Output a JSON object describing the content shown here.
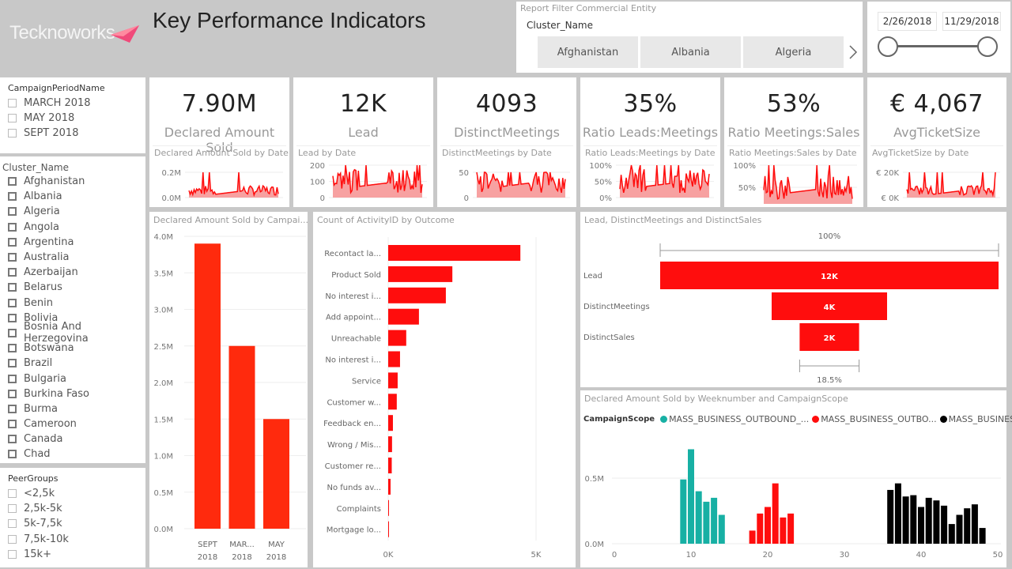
{
  "header": {
    "logo_text": "Tecknoworks",
    "title": "Key Performance Indicators"
  },
  "report_filter": {
    "title": "Report Filter Commercial Entity",
    "field": "Cluster_Name",
    "chips": [
      "Afghanistan",
      "Albania",
      "Algeria"
    ],
    "next_icon": "chevron-right-icon"
  },
  "date_range": {
    "start": "2/26/2018",
    "end": "11/29/2018",
    "start_fraction": 0.0,
    "end_fraction": 1.0
  },
  "slicers": {
    "campaign_period": {
      "title": "CampaignPeriodName",
      "items": [
        "MARCH 2018",
        "MAY 2018",
        "SEPT 2018"
      ]
    },
    "cluster_name": {
      "title": "Cluster_Name",
      "items": [
        "Afghanistan",
        "Albania",
        "Algeria",
        "Angola",
        "Argentina",
        "Australia",
        "Azerbaijan",
        "Belarus",
        "Benin",
        "Bolivia",
        "Bosnia And Herzegovina",
        "Botswana",
        "Brazil",
        "Bulgaria",
        "Burkina Faso",
        "Burma",
        "Cameroon",
        "Canada",
        "Chad"
      ]
    },
    "peer_groups": {
      "title": "PeerGroups",
      "items": [
        "<2,5k",
        "2,5k-5k",
        "5k-7,5k",
        "7,5k-10k",
        "15k+"
      ]
    }
  },
  "kpis": [
    {
      "value": "7.90M",
      "label": "Declared Amount Sold",
      "sub": "Declared Amount Sold by Date",
      "ticks": [
        "0.2M",
        "0.0M"
      ]
    },
    {
      "value": "12K",
      "label": "Lead",
      "sub": "Lead by Date",
      "ticks": [
        "200",
        "100",
        "0"
      ]
    },
    {
      "value": "4093",
      "label": "DistinctMeetings",
      "sub": "DistinctMeetings by Date",
      "ticks": [
        "50",
        "0"
      ]
    },
    {
      "value": "35%",
      "label": "Ratio Leads:Meetings",
      "sub": "Ratio Leads:Meetings by Date",
      "ticks": [
        "100%",
        "50%",
        "0%"
      ]
    },
    {
      "value": "53%",
      "label": "Ratio Meetings:Sales",
      "sub": "Ratio Meetings:Sales by Date",
      "ticks": [
        "100%",
        "50%"
      ]
    },
    {
      "value": "€ 4,067",
      "label": "AvgTicketSize",
      "sub": "AvgTicketSize by Date",
      "ticks": [
        "€ 20K",
        "€ 0K"
      ]
    }
  ],
  "colors": {
    "accent_red": "#ff0d0d",
    "bar_red": "#ff2a0d",
    "teal": "#17b0a4",
    "black": "#000000",
    "spark_fill": "#f7a1a1"
  },
  "chart_data": [
    {
      "id": "campaign_bar",
      "type": "bar",
      "title": "Declared Amount Sold by Campai...",
      "categories": [
        "SEPT 2018",
        "MAR... 2018",
        "MAY 2018"
      ],
      "category_lines": [
        [
          "SEPT",
          "2018"
        ],
        [
          "MAR...",
          "2018"
        ],
        [
          "MAY",
          "2018"
        ]
      ],
      "values": [
        3.9,
        2.5,
        1.5
      ],
      "unit": "M",
      "ylim": [
        0,
        4.0
      ],
      "yticks": [
        "0.0M",
        "0.5M",
        "1.0M",
        "1.5M",
        "2.0M",
        "2.5M",
        "3.0M",
        "3.5M",
        "4.0M"
      ],
      "grid": true
    },
    {
      "id": "outcome_bar",
      "type": "bar",
      "orientation": "horizontal",
      "title": "Count of ActivityID by Outcome",
      "categories": [
        "Recontact la...",
        "Product Sold",
        "No interest i...",
        "Add appoint...",
        "Unreachable",
        "No interest i...",
        "Service",
        "Customer w...",
        "Feedback en...",
        "Wrong / Mis...",
        "Customer re...",
        "No funds av...",
        "Complaints",
        "Mortgage lo..."
      ],
      "values": [
        4470,
        2170,
        1950,
        1040,
        610,
        400,
        320,
        290,
        160,
        130,
        120,
        80,
        20,
        20
      ],
      "xlim": [
        0,
        5000
      ],
      "xticks": [
        "0K",
        "5K"
      ],
      "grid": true
    },
    {
      "id": "funnel",
      "type": "funnel",
      "title": "Lead, DistinctMeetings and DistinctSales",
      "categories": [
        "Lead",
        "DistinctMeetings",
        "DistinctSales"
      ],
      "values": [
        12000,
        4093,
        2220
      ],
      "labels": [
        "12K",
        "4K",
        "2K"
      ],
      "top_percent": "100%",
      "bottom_percent": "18.5%"
    },
    {
      "id": "weekly_bar",
      "type": "bar",
      "title": "Declared Amount Sold by Weeknumber and CampaignScope",
      "legend_title": "CampaignScope",
      "legend_position": "top-left",
      "xlim": [
        0,
        50
      ],
      "xticks": [
        "0",
        "10",
        "20",
        "30",
        "40",
        "50"
      ],
      "ylim": [
        0,
        0.75
      ],
      "yticks": [
        "0.0M",
        "0.5M"
      ],
      "unit": "M",
      "series": [
        {
          "name": "MASS_BUSINESS_OUTBOUND_...",
          "color": "#17b0a4",
          "x": [
            9,
            10,
            11,
            12,
            13,
            14
          ],
          "values": [
            0.49,
            0.72,
            0.4,
            0.32,
            0.35,
            0.22
          ]
        },
        {
          "name": "MASS_BUSINESS_OUTBO...",
          "color": "#ff0d0d",
          "x": [
            18,
            19,
            20,
            21,
            22,
            23
          ],
          "values": [
            0.1,
            0.23,
            0.28,
            0.46,
            0.2,
            0.23
          ]
        },
        {
          "name": "MASS_BUSINESS_O...",
          "color": "#000000",
          "x": [
            36,
            37,
            38,
            39,
            40,
            41,
            42,
            43,
            44,
            45,
            46,
            47,
            48
          ],
          "values": [
            0.41,
            0.46,
            0.36,
            0.37,
            0.28,
            0.35,
            0.33,
            0.29,
            0.15,
            0.22,
            0.27,
            0.3,
            0.12
          ]
        }
      ]
    }
  ]
}
